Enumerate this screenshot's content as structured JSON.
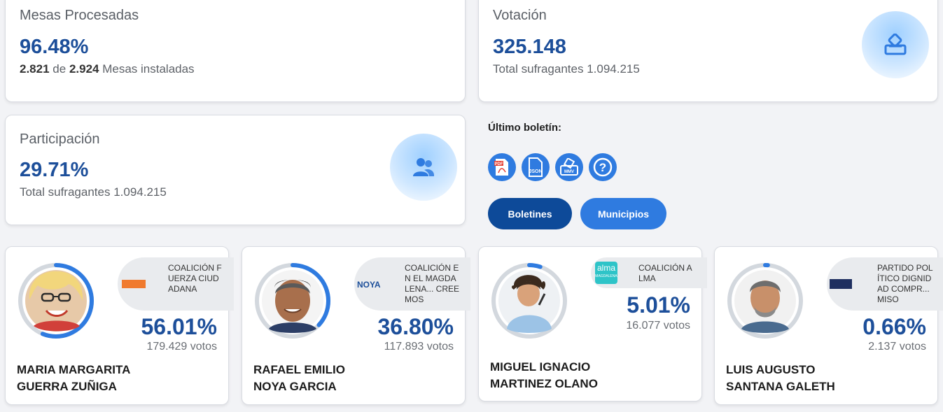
{
  "stats": {
    "mesas": {
      "label": "Mesas Procesadas",
      "value": "96.48%",
      "sub_a": "2.821",
      "sub_de": "de",
      "sub_b": "2.924",
      "sub_rest": "Mesas instaladas"
    },
    "votacion": {
      "label": "Votación",
      "value": "325.148",
      "sub": "Total sufragantes 1.094.215",
      "icon": "ballot-box-icon"
    },
    "participacion": {
      "label": "Participación",
      "value": "29.71%",
      "sub": "Total sufragantes 1.094.215",
      "icon": "users-icon"
    }
  },
  "bulletin": {
    "title": "Último boletín:",
    "downloads": [
      {
        "icon": "pdf-icon",
        "text": "PDF"
      },
      {
        "icon": "json-icon",
        "text": "JSON"
      },
      {
        "icon": "mmv-icon",
        "text": "MMV"
      },
      {
        "icon": "help-icon",
        "text": "?"
      }
    ],
    "buttons": {
      "boletines": "Boletines",
      "municipios": "Municipios"
    }
  },
  "candidates": [
    {
      "name_line1": "MARIA MARGARITA",
      "name_line2": "GUERRA ZUÑIGA",
      "party": "COALICIÓN FUERZA CIUDADANA",
      "logo_text": "",
      "pct": "56.01%",
      "pct_value": 56.01,
      "votes": "179.429 votos"
    },
    {
      "name_line1": "RAFAEL EMILIO",
      "name_line2": "NOYA GARCIA",
      "party": "COALICIÓN EN EL MAGDALENA... CREEMOS",
      "logo_text": "NOYA",
      "pct": "36.80%",
      "pct_value": 36.8,
      "votes": "117.893 votos"
    },
    {
      "name_line1": "MIGUEL IGNACIO",
      "name_line2": "MARTINEZ OLANO",
      "party": "COALICIÓN ALMA",
      "logo_text": "alma",
      "logo_sub": "MAGDALENA",
      "pct": "5.01%",
      "pct_value": 5.01,
      "votes": "16.077 votos"
    },
    {
      "name_line1": "LUIS AUGUSTO",
      "name_line2": "SANTANA GALETH",
      "party": "PARTIDO POLÍTICO DIGNIDAD COMPR... MISO",
      "logo_text": "",
      "pct": "0.66%",
      "pct_value": 0.66,
      "votes": "2.137 votos"
    }
  ],
  "colors": {
    "primary": "#1d4f9a",
    "accent": "#2f7be0",
    "dark_button": "#0d4a99",
    "ring_track": "#d3d8de"
  }
}
